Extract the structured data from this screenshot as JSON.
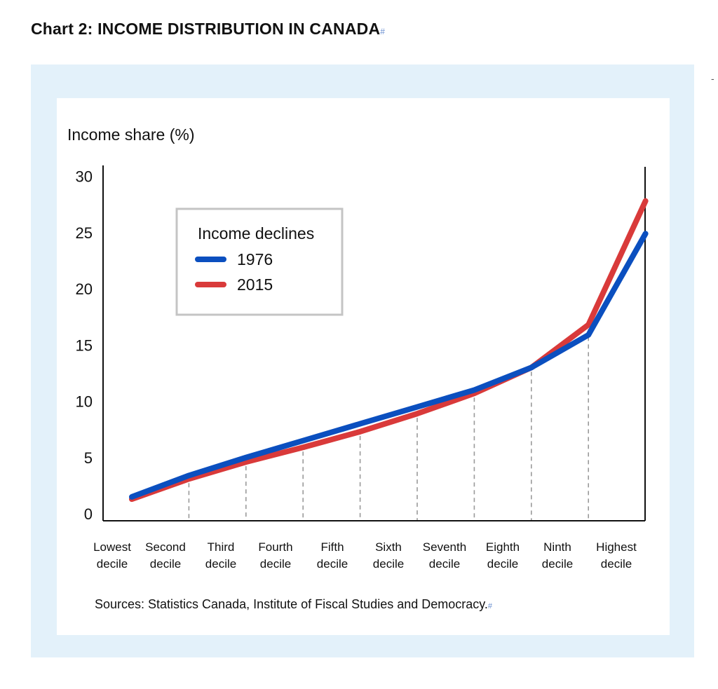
{
  "page_title": "Chart 2: INCOME DISTRIBUTION IN CANADA",
  "title_mark": "#",
  "margin_mark": "-",
  "source": "Sources: Statistics Canada, Institute of Fiscal Studies and Democracy.",
  "source_mark": "#",
  "colors": {
    "frame": "#e3f1fa",
    "series_1976": "#0b4fbf",
    "series_2015": "#d93a3a",
    "guide": "#9a9a9a"
  },
  "chart_data": {
    "type": "line",
    "ylabel": "Income share (%)",
    "ylim": [
      0,
      30
    ],
    "yticks": [
      "30",
      "25",
      "20",
      "15",
      "10",
      "5",
      "0"
    ],
    "categories": [
      [
        "Lowest",
        "decile"
      ],
      [
        "Second",
        "decile"
      ],
      [
        "Third",
        "decile"
      ],
      [
        "Fourth",
        "decile"
      ],
      [
        "Fifth",
        "decile"
      ],
      [
        "Sixth",
        "decile"
      ],
      [
        "Seventh",
        "decile"
      ],
      [
        "Eighth",
        "decile"
      ],
      [
        "Ninth",
        "decile"
      ],
      [
        "Highest",
        "decile"
      ]
    ],
    "legend": {
      "title": "Income declines",
      "position": "top-left"
    },
    "series": [
      {
        "name": "1976",
        "values": [
          1.5,
          3.4,
          5.0,
          6.5,
          8.0,
          9.5,
          11.0,
          13.0,
          15.9,
          24.9
        ]
      },
      {
        "name": "2015",
        "values": [
          1.3,
          3.1,
          4.6,
          5.9,
          7.3,
          8.9,
          10.7,
          13.0,
          16.8,
          27.8
        ]
      }
    ],
    "grid": false
  }
}
